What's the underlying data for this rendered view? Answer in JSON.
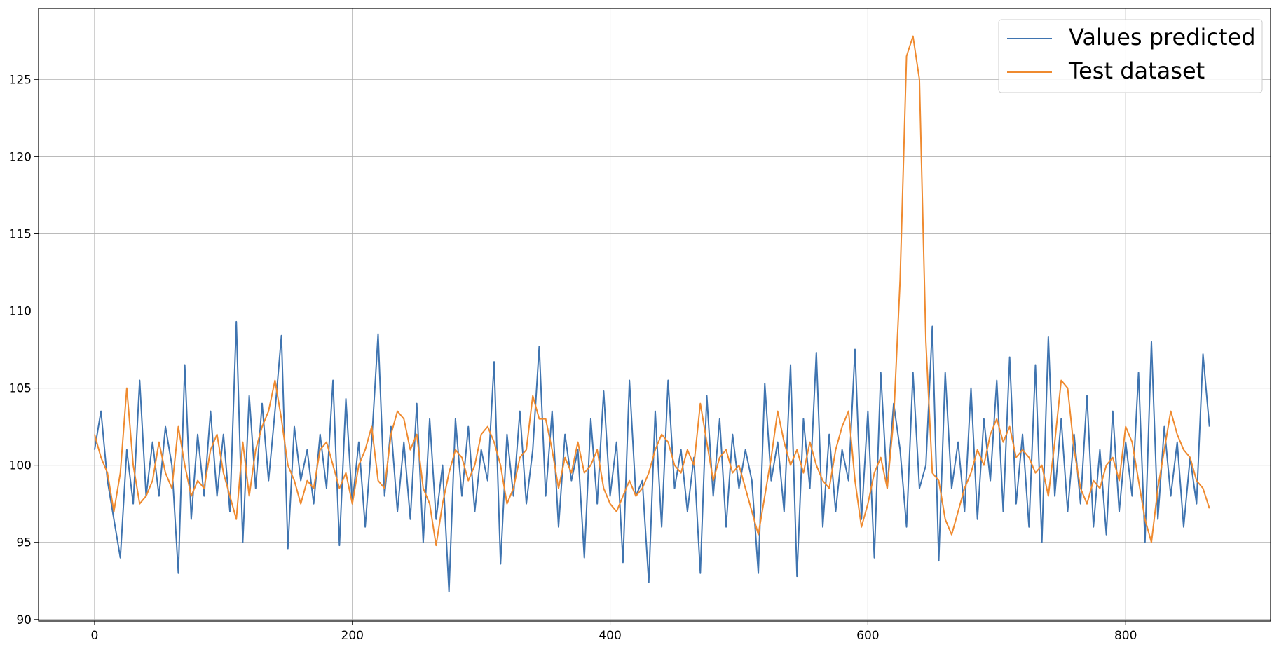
{
  "chart_data": {
    "type": "line",
    "x": [
      0,
      5,
      10,
      15,
      20,
      25,
      30,
      35,
      40,
      45,
      50,
      55,
      60,
      65,
      70,
      75,
      80,
      85,
      90,
      95,
      100,
      105,
      110,
      115,
      120,
      125,
      130,
      135,
      140,
      145,
      150,
      155,
      160,
      165,
      170,
      175,
      180,
      185,
      190,
      195,
      200,
      205,
      210,
      215,
      220,
      225,
      230,
      235,
      240,
      245,
      250,
      255,
      260,
      265,
      270,
      275,
      280,
      285,
      290,
      295,
      300,
      305,
      310,
      315,
      320,
      325,
      330,
      335,
      340,
      345,
      350,
      355,
      360,
      365,
      370,
      375,
      380,
      385,
      390,
      395,
      400,
      405,
      410,
      415,
      420,
      425,
      430,
      435,
      440,
      445,
      450,
      455,
      460,
      465,
      470,
      475,
      480,
      485,
      490,
      495,
      500,
      505,
      510,
      515,
      520,
      525,
      530,
      535,
      540,
      545,
      550,
      555,
      560,
      565,
      570,
      575,
      580,
      585,
      590,
      595,
      600,
      605,
      610,
      615,
      620,
      625,
      630,
      635,
      640,
      645,
      650,
      655,
      660,
      665,
      670,
      675,
      680,
      685,
      690,
      695,
      700,
      705,
      710,
      715,
      720,
      725,
      730,
      735,
      740,
      745,
      750,
      755,
      760,
      765,
      770,
      775,
      780,
      785,
      790,
      795,
      800,
      805,
      810,
      815,
      820,
      825,
      830,
      835,
      840,
      845,
      850,
      855,
      860,
      865
    ],
    "series": [
      {
        "name": "Values predicted",
        "color": "#3f74b0",
        "values": [
          101,
          103.5,
          99,
          96.5,
          94,
          101,
          97.5,
          105.5,
          98,
          101.5,
          98,
          102.5,
          100,
          93,
          106.5,
          96.5,
          102,
          98,
          103.5,
          98,
          102,
          97,
          109.3,
          95,
          104.5,
          98.5,
          104,
          99,
          103.5,
          108.4,
          94.6,
          102.5,
          99,
          101,
          97.5,
          102,
          98.5,
          105.5,
          94.8,
          104.3,
          97.5,
          101.5,
          96,
          101.5,
          108.5,
          98,
          102.5,
          97,
          101.5,
          96.5,
          104,
          95,
          103,
          96.5,
          100,
          91.8,
          103,
          98,
          102.5,
          97,
          101,
          99,
          106.7,
          93.6,
          102,
          98,
          103.5,
          97.5,
          101,
          107.7,
          98,
          103.5,
          96,
          102,
          99,
          101,
          94,
          103,
          97.5,
          104.8,
          98,
          101.5,
          93.7,
          105.5,
          98,
          99,
          92.4,
          103.5,
          96,
          105.5,
          98.5,
          101,
          97,
          100.5,
          93,
          104.5,
          98,
          103,
          96,
          102,
          98.5,
          101,
          99,
          93,
          105.3,
          99,
          101.5,
          97,
          106.5,
          92.8,
          103,
          98.5,
          107.3,
          96,
          102,
          97,
          101,
          99,
          107.5,
          96.5,
          103.5,
          94,
          106,
          98.5,
          104,
          101,
          96,
          106,
          98.5,
          100,
          109,
          93.8,
          106,
          98.5,
          101.5,
          97,
          105,
          96.5,
          103,
          99,
          105.5,
          97,
          107,
          97.5,
          102,
          96,
          106.5,
          95,
          108.3,
          98,
          103,
          97,
          102,
          97.5,
          104.5,
          96,
          101,
          95.5,
          103.5,
          97,
          101.5,
          98,
          106,
          95,
          108,
          96.5,
          102.5,
          98,
          101.5,
          96,
          100.5,
          97.5,
          107.2,
          102.5
        ]
      },
      {
        "name": "Test dataset",
        "color": "#ef8a2f",
        "values": [
          102,
          100.5,
          99.5,
          97,
          99.5,
          105,
          100,
          97.5,
          98,
          99,
          101.5,
          99.5,
          98.5,
          102.5,
          100,
          98,
          99,
          98.5,
          101,
          102,
          99.5,
          98,
          96.5,
          101.5,
          98,
          101,
          102.5,
          103.5,
          105.5,
          103,
          100,
          99,
          97.5,
          99,
          98.5,
          101,
          101.5,
          100,
          98.5,
          99.5,
          97.5,
          100,
          101,
          102.5,
          99,
          98.5,
          102,
          103.5,
          103,
          101,
          102,
          98.5,
          97.5,
          94.8,
          97.5,
          99.5,
          101,
          100.5,
          99,
          100,
          102,
          102.5,
          101.5,
          100,
          97.5,
          98.5,
          100.5,
          101,
          104.5,
          103,
          103,
          101,
          98.5,
          100.5,
          99.5,
          101.5,
          99.5,
          100,
          101,
          98.5,
          97.5,
          97,
          98,
          99,
          98,
          98.5,
          99.5,
          101,
          102,
          101.5,
          100,
          99.5,
          101,
          100,
          104,
          101.5,
          99,
          100.5,
          101,
          99.5,
          100,
          98.5,
          97,
          95.5,
          98,
          100.5,
          103.5,
          101.5,
          100,
          101,
          99.5,
          101.5,
          100,
          99,
          98.5,
          101,
          102.5,
          103.5,
          99,
          96,
          97.5,
          99.5,
          100.5,
          98.5,
          103,
          112,
          126.5,
          127.8,
          125,
          108,
          99.5,
          99,
          96.5,
          95.5,
          97,
          98.5,
          99.5,
          101,
          100,
          102,
          103,
          101.5,
          102.5,
          100.5,
          101,
          100.5,
          99.5,
          100,
          98,
          101.5,
          105.5,
          105,
          101,
          98.5,
          97.5,
          99,
          98.5,
          100,
          100.5,
          99,
          102.5,
          101.5,
          99,
          96.5,
          95,
          98.5,
          101,
          103.5,
          102,
          101,
          100.5,
          99,
          98.5,
          97.2
        ]
      }
    ],
    "xlim": [
      -43.45,
      912.45
    ],
    "ylim": [
      89.9,
      129.6
    ],
    "xticks": [
      0,
      200,
      400,
      600,
      800
    ],
    "yticks": [
      90,
      95,
      100,
      105,
      110,
      115,
      120,
      125
    ],
    "grid": true,
    "legend": "upper right"
  }
}
